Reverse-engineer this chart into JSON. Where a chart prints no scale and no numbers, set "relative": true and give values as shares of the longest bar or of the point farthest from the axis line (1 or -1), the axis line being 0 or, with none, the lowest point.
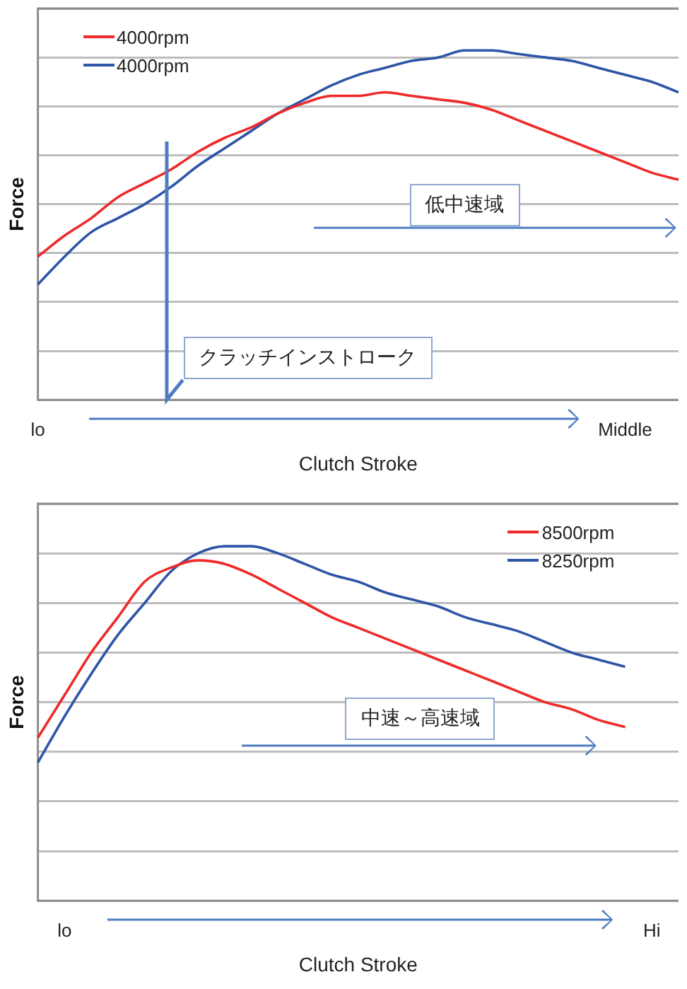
{
  "chart_data": [
    {
      "type": "line",
      "relative": true,
      "xlabel": "Clutch Stroke",
      "ylabel": "Force",
      "grid": "y",
      "legend": "top left",
      "marker": "none",
      "categories": [
        "lo",
        null,
        null,
        null,
        null,
        null,
        null,
        null,
        null,
        null,
        null,
        null,
        null,
        null,
        null,
        null,
        null,
        null,
        null,
        null,
        null,
        null,
        "Middle",
        null,
        null
      ],
      "annotations": [
        "低中速域",
        "クラッチインストローク"
      ],
      "series": [
        {
          "name": "4000rpm",
          "color": "#ee2a2a",
          "values": [
            0.41,
            0.47,
            0.52,
            0.58,
            0.62,
            0.66,
            0.71,
            0.75,
            0.78,
            0.82,
            0.85,
            0.87,
            0.87,
            0.88,
            0.87,
            0.86,
            0.85,
            0.83,
            0.8,
            0.77,
            0.74,
            0.71,
            0.68,
            0.65,
            0.63
          ]
        },
        {
          "name": "4000rpm",
          "color": "#2e55a6",
          "values": [
            0.33,
            0.41,
            0.48,
            0.52,
            0.56,
            0.61,
            0.67,
            0.72,
            0.77,
            0.82,
            0.86,
            0.9,
            0.93,
            0.95,
            0.97,
            0.98,
            1.0,
            1.0,
            0.99,
            0.98,
            0.97,
            0.95,
            0.93,
            0.91,
            0.88
          ]
        }
      ]
    },
    {
      "type": "line",
      "relative": true,
      "xlabel": "Clutch Stroke",
      "ylabel": "Force",
      "grid": "y",
      "legend": "top right",
      "marker": "none",
      "categories": [
        null,
        "lo",
        null,
        null,
        null,
        null,
        null,
        null,
        null,
        null,
        null,
        null,
        null,
        null,
        null,
        null,
        null,
        null,
        null,
        null,
        null,
        null,
        null,
        "Hi",
        null
      ],
      "annotations": [
        "中速～高速域"
      ],
      "series": [
        {
          "name": "8500rpm",
          "color": "#ee2a2a",
          "values": [
            0.46,
            0.58,
            0.7,
            0.8,
            0.9,
            0.94,
            0.96,
            0.95,
            0.92,
            0.88,
            0.84,
            0.8,
            0.77,
            0.74,
            0.71,
            0.68,
            0.65,
            0.62,
            0.59,
            0.56,
            0.54,
            0.51,
            0.49,
            null,
            null
          ]
        },
        {
          "name": "8250rpm",
          "color": "#2e55a6",
          "values": [
            0.39,
            0.52,
            0.64,
            0.75,
            0.84,
            0.93,
            0.98,
            1.0,
            1.0,
            0.98,
            0.95,
            0.92,
            0.9,
            0.87,
            0.85,
            0.83,
            0.8,
            0.78,
            0.76,
            0.73,
            0.7,
            0.68,
            0.66,
            null,
            null
          ]
        }
      ]
    }
  ]
}
